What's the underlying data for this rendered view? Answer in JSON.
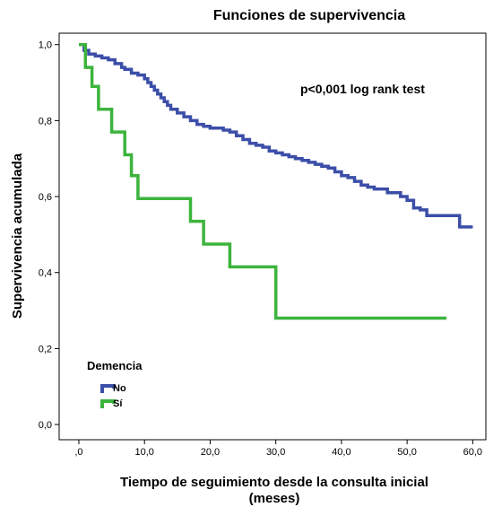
{
  "chart_data": {
    "type": "line",
    "step": true,
    "title": "Funciones de supervivencia",
    "xlabel_line1": "Tiempo de seguimiento desde la consulta inicial",
    "xlabel_line2": "(meses)",
    "ylabel": "Supervivencia acumulada",
    "annotation": "p<0,001 log rank test",
    "xlim": [
      -3,
      62
    ],
    "ylim": [
      -0.04,
      1.03
    ],
    "x_ticks": [
      0,
      10,
      20,
      30,
      40,
      50,
      60
    ],
    "x_tick_labels": [
      ",0",
      "10,0",
      "20,0",
      "30,0",
      "40,0",
      "50,0",
      "60,0"
    ],
    "y_ticks": [
      0,
      0.2,
      0.4,
      0.6,
      0.8,
      1.0
    ],
    "y_tick_labels": [
      "0,0",
      "0,2",
      "0,4",
      "0,6",
      "0,8",
      "1,0"
    ],
    "grid": false,
    "legend": {
      "title": "Demencia",
      "placement": "bottom-left",
      "entries": [
        {
          "label": "No",
          "color": "#3b4ea8"
        },
        {
          "label": "Sí",
          "color": "#3cb43c"
        }
      ]
    },
    "series": [
      {
        "name": "No",
        "color": "#3b4ea8",
        "x": [
          0,
          0.8,
          1.5,
          2.5,
          3.5,
          4.5,
          5.5,
          6.5,
          7,
          8,
          9,
          10,
          10.5,
          11,
          11.5,
          12,
          12.5,
          13,
          13.5,
          14,
          15,
          16,
          17,
          18,
          19,
          20,
          22,
          23,
          24,
          25,
          26,
          27,
          28,
          29,
          30,
          31,
          32,
          33,
          34,
          35,
          36,
          37,
          38,
          39,
          40,
          41,
          42,
          43,
          44,
          45,
          47,
          49,
          50,
          51,
          52,
          53,
          58,
          59,
          60
        ],
        "y": [
          1.0,
          0.985,
          0.975,
          0.97,
          0.965,
          0.96,
          0.95,
          0.94,
          0.935,
          0.925,
          0.92,
          0.91,
          0.9,
          0.89,
          0.88,
          0.87,
          0.86,
          0.85,
          0.84,
          0.83,
          0.82,
          0.81,
          0.8,
          0.79,
          0.785,
          0.78,
          0.775,
          0.77,
          0.76,
          0.75,
          0.74,
          0.735,
          0.73,
          0.72,
          0.715,
          0.71,
          0.705,
          0.7,
          0.695,
          0.69,
          0.685,
          0.68,
          0.675,
          0.665,
          0.655,
          0.65,
          0.64,
          0.63,
          0.625,
          0.62,
          0.61,
          0.6,
          0.59,
          0.57,
          0.565,
          0.55,
          0.52,
          0.52,
          0.52
        ]
      },
      {
        "name": "Sí",
        "color": "#3cb43c",
        "x": [
          0,
          1,
          2,
          3,
          5,
          7,
          8,
          9,
          17,
          18,
          19,
          23,
          30,
          56
        ],
        "y": [
          1.0,
          0.94,
          0.89,
          0.83,
          0.77,
          0.71,
          0.655,
          0.595,
          0.535,
          0.535,
          0.475,
          0.415,
          0.28,
          0.28
        ]
      }
    ]
  }
}
